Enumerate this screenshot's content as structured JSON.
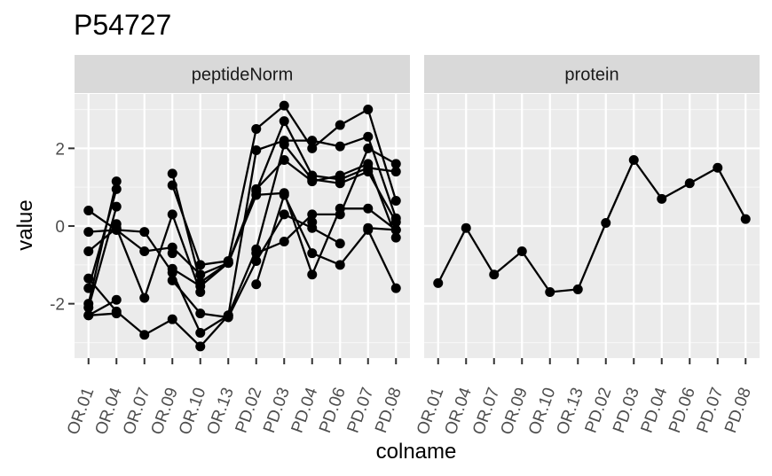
{
  "chart_data": {
    "type": "line",
    "title": "P54727",
    "xlabel": "colname",
    "ylabel": "value",
    "ylim": [
      -3.4,
      3.4
    ],
    "y_ticks": [
      -2,
      0,
      2
    ],
    "y_tick_labels": [
      "-2",
      "0",
      "2"
    ],
    "grid": true,
    "categories": [
      "OR.01",
      "OR.04",
      "OR.07",
      "OR.09",
      "OR.10",
      "OR.13",
      "PD.02",
      "PD.03",
      "PD.04",
      "PD.06",
      "PD.07",
      "PD.08"
    ],
    "panels": [
      {
        "name": "peptideNorm",
        "series": [
          {
            "values": [
              -1.35,
              -2.2,
              -2.8,
              -2.4,
              -3.1,
              -2.3,
              -0.6,
              2.1,
              1.2,
              1.1,
              1.4,
              0.1
            ]
          },
          {
            "values": [
              0.4,
              -0.1,
              -0.65,
              -0.55,
              -1.25,
              -0.95,
              0.9,
              2.7,
              1.3,
              1.2,
              1.5,
              1.4
            ]
          },
          {
            "values": [
              -1.6,
              0.95,
              null,
              -1.1,
              -1.55,
              -0.95,
              0.8,
              0.85,
              -1.25,
              0.45,
              0.45,
              -0.1
            ]
          },
          {
            "values": [
              -2.0,
              1.15,
              null,
              1.05,
              -1.0,
              -0.9,
              2.5,
              3.1,
              2.0,
              2.6,
              3.0,
              0.65
            ]
          },
          {
            "values": [
              -2.1,
              0.5,
              null,
              -1.4,
              -2.25,
              -2.35,
              -0.9,
              0.3,
              -0.05,
              -0.45,
              null,
              null
            ]
          },
          {
            "values": [
              -2.3,
              -1.9,
              null,
              1.35,
              -1.45,
              -0.95,
              0.95,
              1.7,
              1.15,
              1.3,
              1.6,
              -0.3
            ]
          },
          {
            "values": [
              -0.65,
              -0.05,
              -1.85,
              0.3,
              -1.7,
              null,
              -1.5,
              0.8,
              -0.7,
              -1.0,
              -0.1,
              -1.6
            ]
          },
          {
            "values": [
              -0.15,
              -0.1,
              -0.15,
              -1.2,
              -2.75,
              -2.3,
              1.95,
              2.2,
              2.2,
              2.05,
              2.3,
              0.2
            ]
          },
          {
            "values": [
              -2.3,
              -2.25,
              null,
              -0.7,
              null,
              null,
              -0.7,
              -0.4,
              0.3,
              0.3,
              2.0,
              1.6
            ]
          },
          {
            "values": [
              null,
              0.05,
              null,
              null,
              null,
              null,
              null,
              null,
              0.1,
              null,
              -0.05,
              -0.1
            ]
          }
        ]
      },
      {
        "name": "protein",
        "series": [
          {
            "values": [
              -1.47,
              -0.05,
              -1.25,
              -0.65,
              -1.7,
              -1.63,
              0.08,
              1.7,
              0.7,
              1.1,
              1.5,
              0.18
            ]
          }
        ]
      }
    ]
  }
}
